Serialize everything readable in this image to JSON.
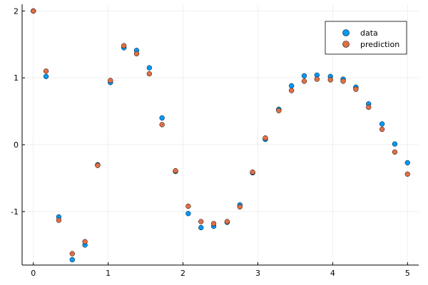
{
  "chart_data": {
    "type": "scatter",
    "title": "",
    "xlabel": "",
    "ylabel": "",
    "xlim": [
      -0.15,
      5.15
    ],
    "ylim": [
      -1.8,
      2.1
    ],
    "grid": true,
    "legend_position": "top-right",
    "x_ticks": [
      {
        "value": 0,
        "label": "0"
      },
      {
        "value": 1,
        "label": "1"
      },
      {
        "value": 2,
        "label": "2"
      },
      {
        "value": 3,
        "label": "3"
      },
      {
        "value": 4,
        "label": "4"
      },
      {
        "value": 5,
        "label": "5"
      }
    ],
    "y_ticks": [
      {
        "value": -1,
        "label": "-1"
      },
      {
        "value": 0,
        "label": "0"
      },
      {
        "value": 1,
        "label": "1"
      },
      {
        "value": 2,
        "label": "2"
      }
    ],
    "x": [
      0.0,
      0.17,
      0.34,
      0.52,
      0.69,
      0.86,
      1.03,
      1.21,
      1.38,
      1.55,
      1.72,
      1.9,
      2.07,
      2.24,
      2.41,
      2.59,
      2.76,
      2.93,
      3.1,
      3.28,
      3.45,
      3.62,
      3.79,
      3.97,
      4.14,
      4.31,
      4.48,
      4.66,
      4.83,
      5.0
    ],
    "series": [
      {
        "name": "data",
        "color": "#009AFA",
        "values": [
          2.0,
          1.02,
          -1.08,
          -1.72,
          -1.5,
          -0.3,
          0.93,
          1.45,
          1.41,
          1.15,
          0.4,
          -0.4,
          -1.03,
          -1.24,
          -1.22,
          -1.16,
          -0.9,
          -0.42,
          0.08,
          0.53,
          0.88,
          1.03,
          1.04,
          1.02,
          0.98,
          0.86,
          0.61,
          0.31,
          0.01,
          -0.27
        ]
      },
      {
        "name": "prediction",
        "color": "#E26F46",
        "values": [
          2.0,
          1.1,
          -1.13,
          -1.63,
          -1.45,
          -0.31,
          0.96,
          1.48,
          1.36,
          1.06,
          0.3,
          -0.39,
          -0.92,
          -1.15,
          -1.18,
          -1.15,
          -0.93,
          -0.41,
          0.1,
          0.51,
          0.81,
          0.95,
          0.98,
          0.97,
          0.95,
          0.83,
          0.56,
          0.23,
          -0.11,
          -0.44
        ]
      }
    ]
  }
}
